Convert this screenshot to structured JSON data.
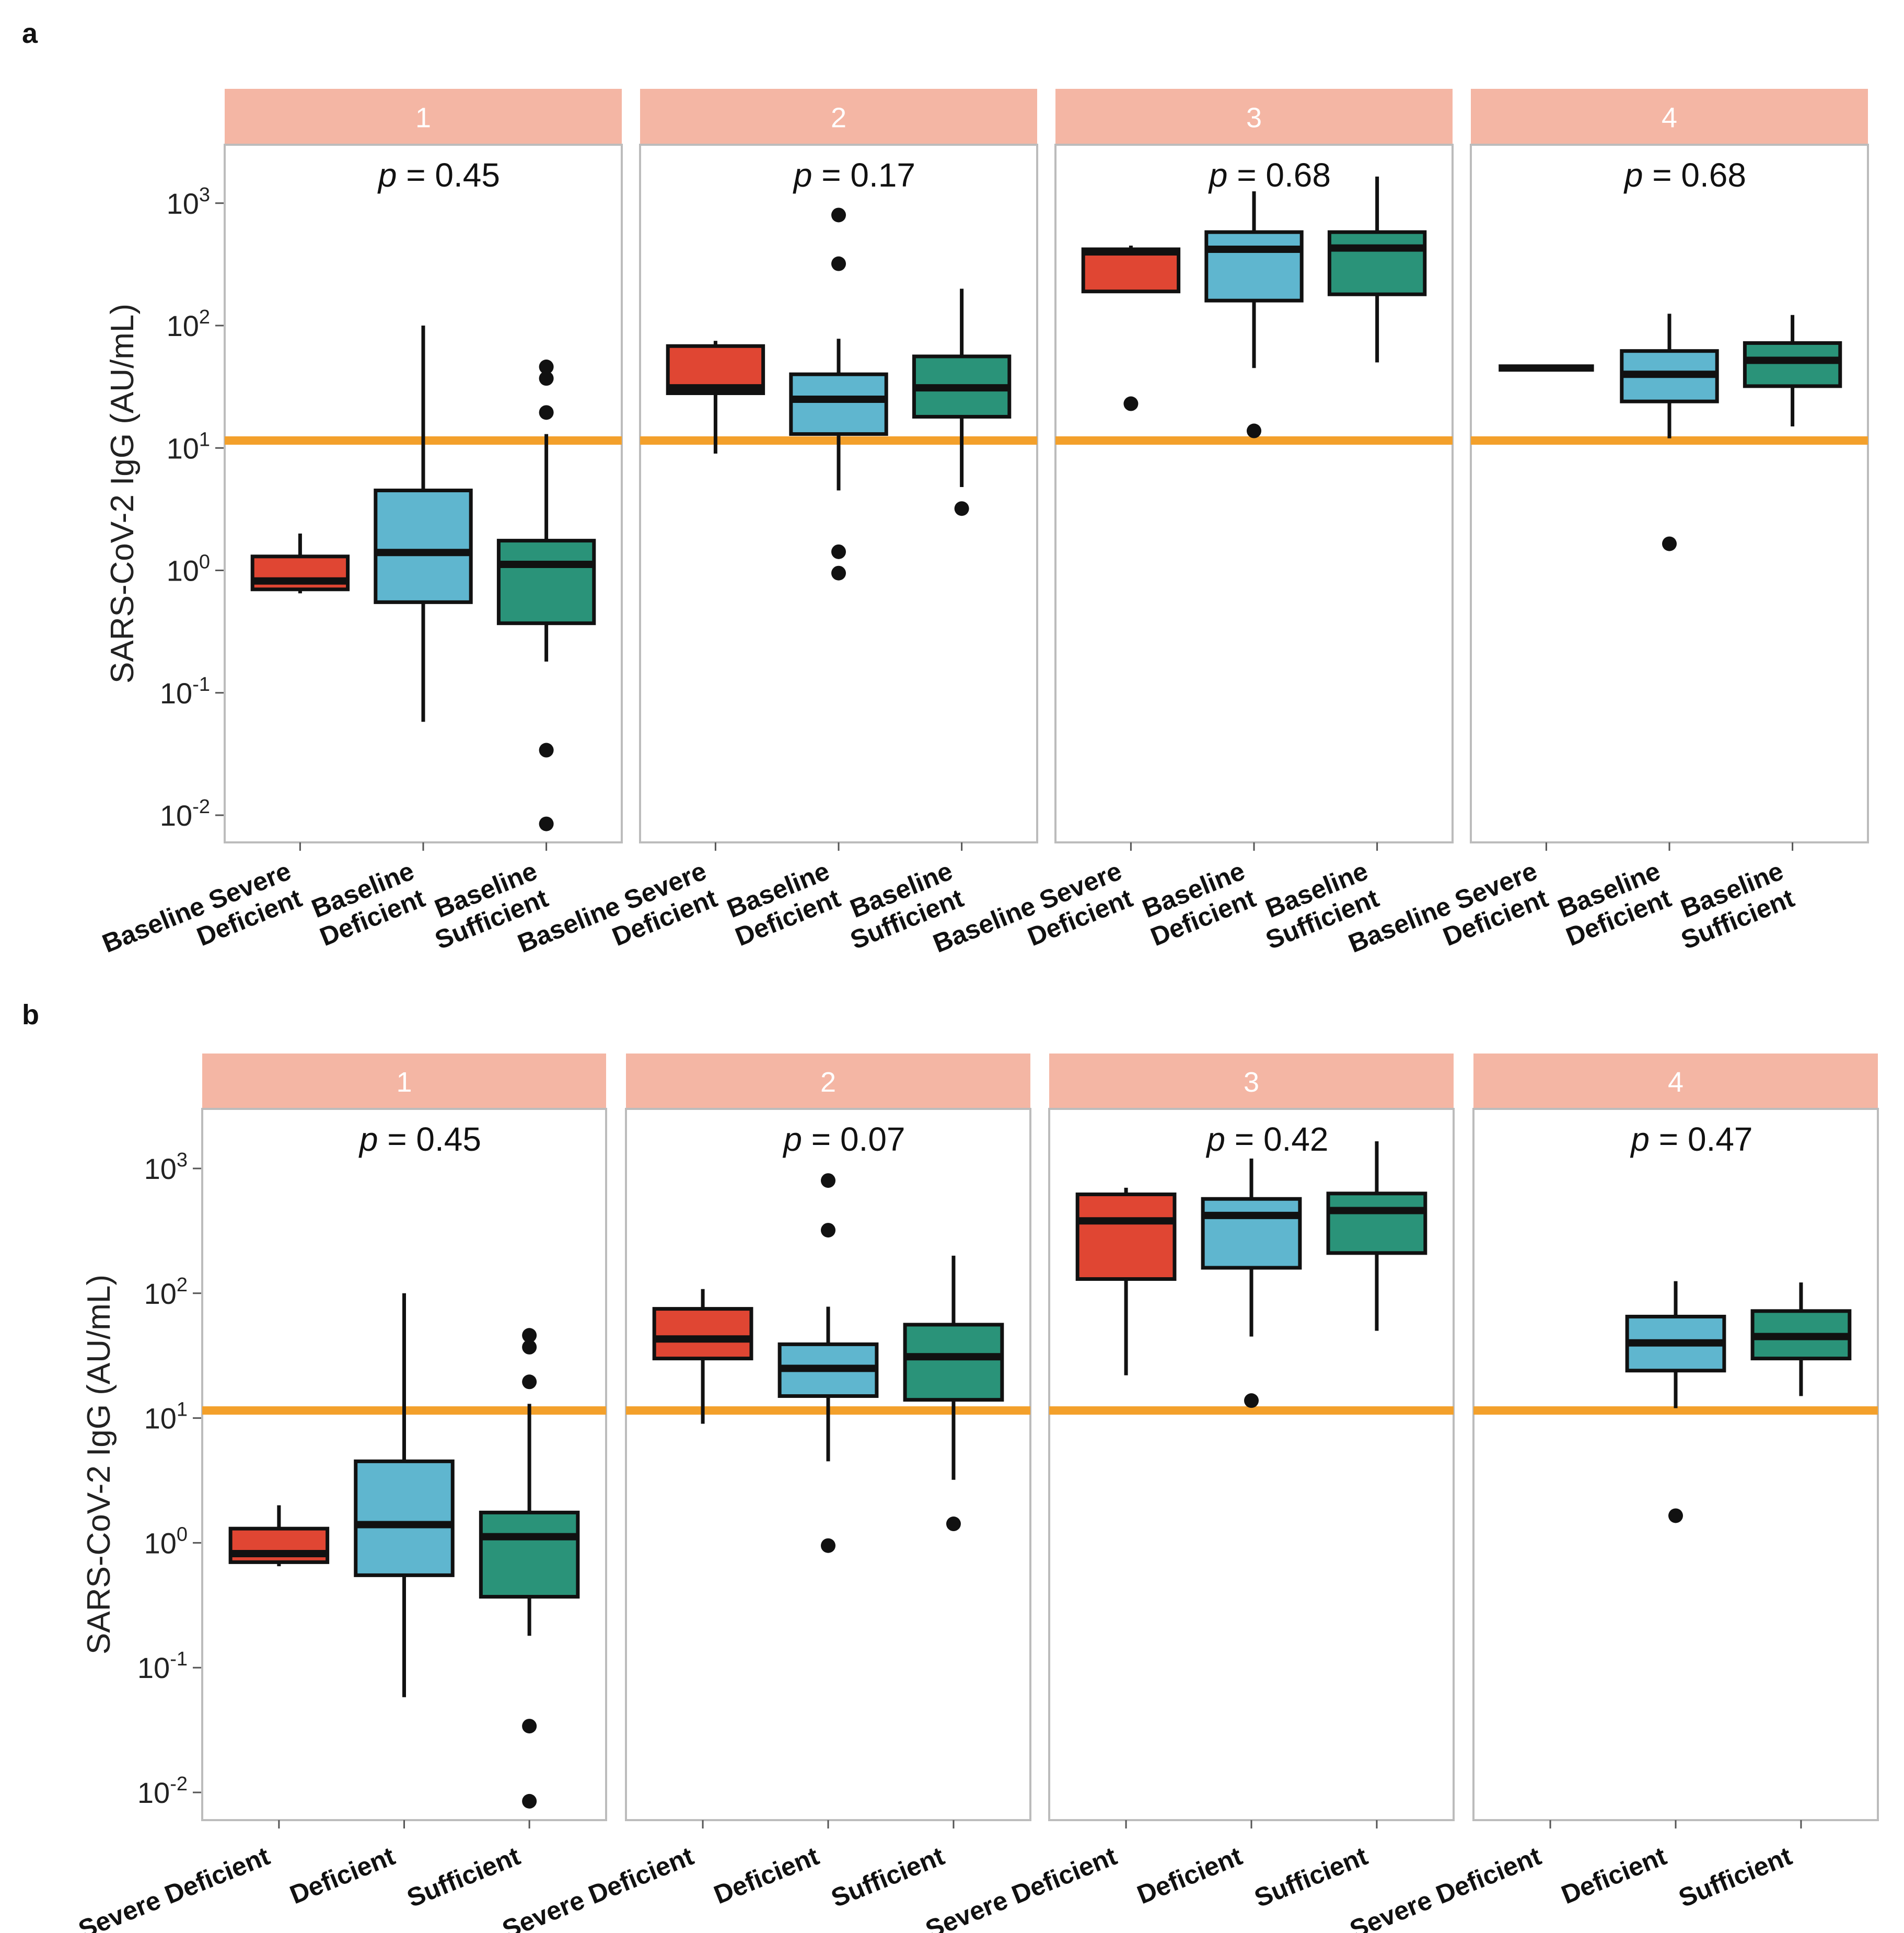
{
  "figure": {
    "panel_labels": [
      "a",
      "b"
    ],
    "ylabel": "SARS-CoV-2 IgG (AU/mL)",
    "y_ticks": [
      {
        "exp": "3",
        "value": 1000
      },
      {
        "exp": "2",
        "value": 100
      },
      {
        "exp": "1",
        "value": 10
      },
      {
        "exp": "0",
        "value": 1
      },
      {
        "exp": "-1",
        "value": 0.1
      },
      {
        "exp": "-2",
        "value": 0.01
      }
    ],
    "tick_base": "10",
    "p_prefix": "p"
  },
  "colors": {
    "strip": "#f4b6a4",
    "strip_text": "#ffffff",
    "severe": "#e04633",
    "deficient": "#5fb6cf",
    "sufficient": "#2a9379",
    "threshold": "#f3a02b",
    "frame": "#bcbcbc"
  },
  "chart_data": [
    {
      "type": "box",
      "panel": "a",
      "ylabel": "SARS-CoV-2 IgG (AU/mL)",
      "yscale": "log",
      "ylim": [
        0.006,
        3000
      ],
      "threshold": 11.5,
      "category_lines": [
        [
          "Baseline Severe",
          "Deficient"
        ],
        [
          "Baseline",
          "Deficient"
        ],
        [
          "Baseline",
          "Sufficient"
        ]
      ],
      "facets": [
        {
          "strip": "1",
          "p": "0.45",
          "boxes": [
            {
              "group": "severe",
              "whisker_low": 0.65,
              "q1": 0.7,
              "median": 0.82,
              "q3": 1.3,
              "whisker_high": 2.0,
              "outliers": []
            },
            {
              "group": "deficient",
              "whisker_low": 0.058,
              "q1": 0.55,
              "median": 1.4,
              "q3": 4.5,
              "whisker_high": 100,
              "outliers": []
            },
            {
              "group": "sufficient",
              "whisker_low": 0.18,
              "q1": 0.37,
              "median": 1.12,
              "q3": 1.75,
              "whisker_high": 13,
              "outliers": [
                0.0085,
                0.034,
                19.5,
                37,
                46
              ]
            }
          ]
        },
        {
          "strip": "2",
          "p": "0.17",
          "boxes": [
            {
              "group": "severe",
              "whisker_low": 9,
              "q1": 28,
              "median": 31,
              "q3": 68,
              "whisker_high": 75,
              "outliers": []
            },
            {
              "group": "deficient",
              "whisker_low": 4.5,
              "q1": 13,
              "median": 25,
              "q3": 40,
              "whisker_high": 78,
              "outliers": [
                0.95,
                1.42,
                320,
                800
              ]
            },
            {
              "group": "sufficient",
              "whisker_low": 4.8,
              "q1": 18,
              "median": 31,
              "q3": 56,
              "whisker_high": 200,
              "outliers": [
                3.2
              ]
            }
          ]
        },
        {
          "strip": "3",
          "p": "0.68",
          "boxes": [
            {
              "group": "severe",
              "whisker_low": 190,
              "q1": 190,
              "median": 400,
              "q3": 420,
              "whisker_high": 450,
              "outliers": [
                23
              ]
            },
            {
              "group": "deficient",
              "whisker_low": 45,
              "q1": 160,
              "median": 420,
              "q3": 580,
              "whisker_high": 1250,
              "outliers": [
                13.8
              ]
            },
            {
              "group": "sufficient",
              "whisker_low": 50,
              "q1": 180,
              "median": 430,
              "q3": 580,
              "whisker_high": 1650,
              "outliers": []
            }
          ]
        },
        {
          "strip": "4",
          "p": "0.68",
          "boxes": [
            {
              "group": "severe",
              "whisker_low": 45,
              "q1": 45,
              "median": 45,
              "q3": 45,
              "whisker_high": 45,
              "outliers": []
            },
            {
              "group": "deficient",
              "whisker_low": 12,
              "q1": 24,
              "median": 40,
              "q3": 62,
              "whisker_high": 125,
              "outliers": [
                1.65
              ]
            },
            {
              "group": "sufficient",
              "whisker_low": 15,
              "q1": 32,
              "median": 52,
              "q3": 72,
              "whisker_high": 122,
              "outliers": []
            }
          ]
        }
      ]
    },
    {
      "type": "box",
      "panel": "b",
      "ylabel": "SARS-CoV-2 IgG (AU/mL)",
      "yscale": "log",
      "ylim": [
        0.006,
        3000
      ],
      "threshold": 11.5,
      "category_lines": [
        [
          "Severe Deficient"
        ],
        [
          "Deficient"
        ],
        [
          "Sufficient"
        ]
      ],
      "facets": [
        {
          "strip": "1",
          "p": "0.45",
          "boxes": [
            {
              "group": "severe",
              "whisker_low": 0.65,
              "q1": 0.7,
              "median": 0.82,
              "q3": 1.3,
              "whisker_high": 2.0,
              "outliers": []
            },
            {
              "group": "deficient",
              "whisker_low": 0.058,
              "q1": 0.55,
              "median": 1.4,
              "q3": 4.5,
              "whisker_high": 100,
              "outliers": []
            },
            {
              "group": "sufficient",
              "whisker_low": 0.18,
              "q1": 0.37,
              "median": 1.12,
              "q3": 1.75,
              "whisker_high": 13,
              "outliers": [
                0.0085,
                0.034,
                19.5,
                37,
                46
              ]
            }
          ]
        },
        {
          "strip": "2",
          "p": "0.07",
          "boxes": [
            {
              "group": "severe",
              "whisker_low": 9,
              "q1": 30,
              "median": 43,
              "q3": 75,
              "whisker_high": 108,
              "outliers": []
            },
            {
              "group": "deficient",
              "whisker_low": 4.5,
              "q1": 15,
              "median": 25,
              "q3": 39,
              "whisker_high": 78,
              "outliers": [
                0.95,
                320,
                800
              ]
            },
            {
              "group": "sufficient",
              "whisker_low": 3.2,
              "q1": 14,
              "median": 31,
              "q3": 56,
              "whisker_high": 200,
              "outliers": [
                1.42
              ]
            }
          ]
        },
        {
          "strip": "3",
          "p": "0.42",
          "boxes": [
            {
              "group": "severe",
              "whisker_low": 22,
              "q1": 130,
              "median": 380,
              "q3": 620,
              "whisker_high": 700,
              "outliers": []
            },
            {
              "group": "deficient",
              "whisker_low": 45,
              "q1": 160,
              "median": 420,
              "q3": 570,
              "whisker_high": 1200,
              "outliers": [
                13.8
              ]
            },
            {
              "group": "sufficient",
              "whisker_low": 50,
              "q1": 210,
              "median": 460,
              "q3": 630,
              "whisker_high": 1650,
              "outliers": []
            }
          ]
        },
        {
          "strip": "4",
          "p": "0.47",
          "boxes": [
            {
              "group": "deficient",
              "whisker_low": 12,
              "q1": 24,
              "median": 40,
              "q3": 65,
              "whisker_high": 125,
              "outliers": [
                1.65
              ]
            },
            {
              "group": "sufficient",
              "whisker_low": 15,
              "q1": 30,
              "median": 45,
              "q3": 72,
              "whisker_high": 122,
              "outliers": []
            }
          ]
        }
      ]
    }
  ]
}
